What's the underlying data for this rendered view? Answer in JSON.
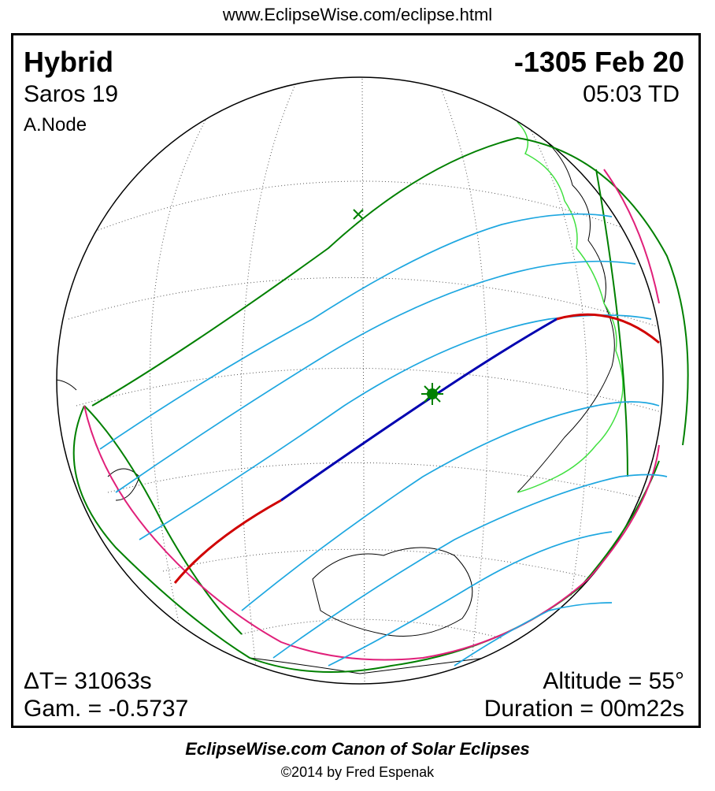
{
  "header": {
    "url": "www.EclipseWise.com/eclipse.html"
  },
  "panel": {
    "eclipse_type": "Hybrid",
    "date": "-1305 Feb 20",
    "saros": "Saros  19",
    "time": "05:03 TD",
    "node": "A.Node",
    "delta_t": "ΔT=  31063s",
    "gamma": "Gam. = -0.5737",
    "altitude": "Altitude = 55°",
    "duration": "Duration = 00m22s"
  },
  "colors": {
    "penumbra_limits": "#008000",
    "magnitude_curves": "#1ea7e0",
    "total_path": "#0000b0",
    "annular_path": "#d00000",
    "rise_set_curves": "#e0207a",
    "borders": "#40e040",
    "night_shadow": "#b8b8b8"
  },
  "footer": {
    "title": "EclipseWise.com Canon of Solar Eclipses",
    "copyright": "©2014 by Fred Espenak"
  }
}
